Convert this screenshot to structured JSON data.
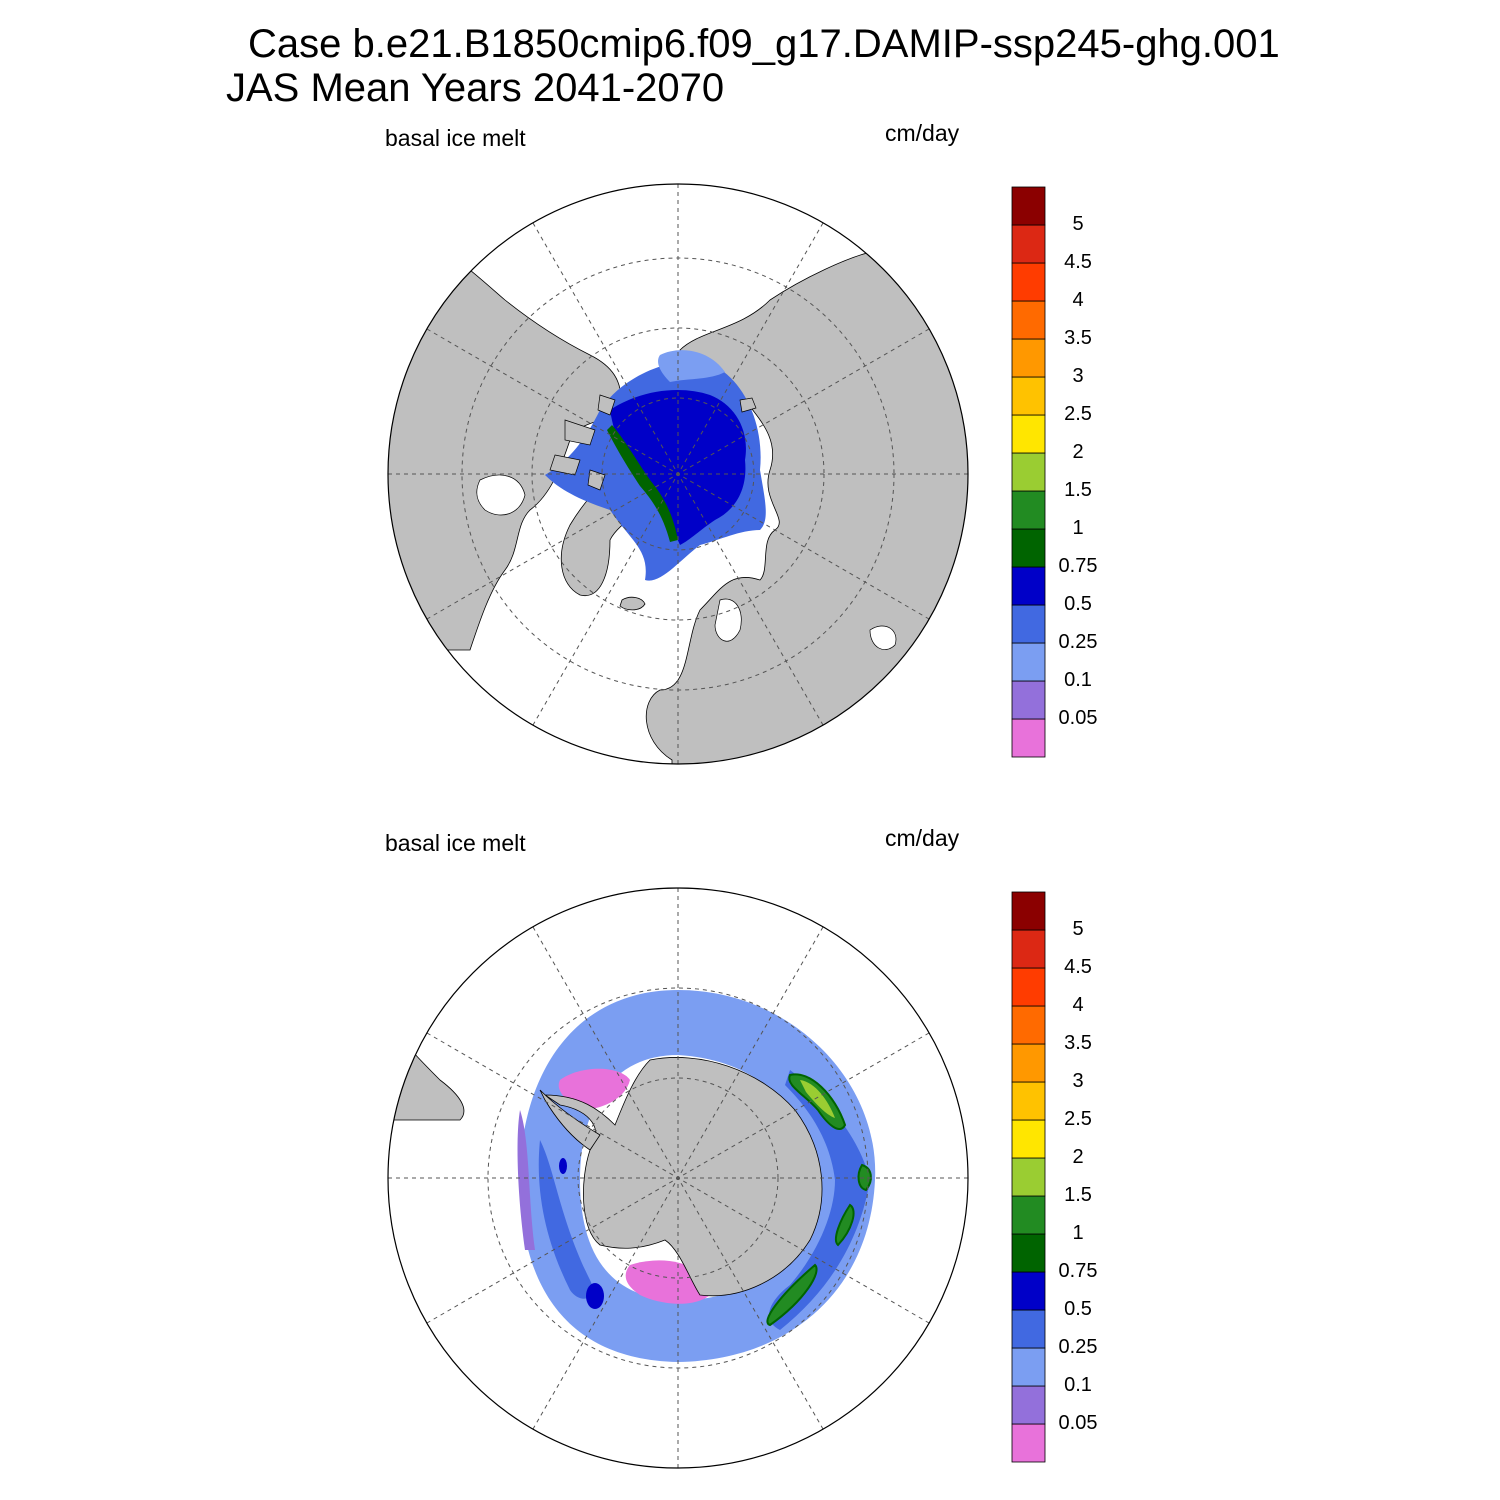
{
  "figure": {
    "title_line1": "Case b.e21.B1850cmip6.f09_g17.DAMIP-ssp245-ghg.001",
    "title_line2": "JAS Mean   Years 2041-2070"
  },
  "colors": {
    "land": "#bfbfbf",
    "ocean": "#ffffff",
    "grid": "#555555",
    "bins": [
      "#e872da",
      "#9370db",
      "#7b9ef2",
      "#4169e1",
      "#0000c8",
      "#006400",
      "#228b22",
      "#9acd32",
      "#ffe600",
      "#ffc200",
      "#ff9800",
      "#ff6a00",
      "#ff3c00",
      "#dc2814",
      "#8b0000"
    ]
  },
  "colorbar": {
    "levels": [
      "0.05",
      "0.1",
      "0.25",
      "0.5",
      "0.75",
      "1",
      "1.5",
      "2",
      "2.5",
      "3",
      "3.5",
      "4",
      "4.5",
      "5"
    ]
  },
  "panels": [
    {
      "id": "arctic",
      "variable_label": "basal ice melt",
      "units_label": "cm/day",
      "hemisphere": "north",
      "field_summary": {
        "dominant_range": "0.5-0.75",
        "edge_range": "0.25-0.5",
        "shelf_break_range": "0.75-1"
      }
    },
    {
      "id": "antarctic",
      "variable_label": "basal ice melt",
      "units_label": "cm/day",
      "hemisphere": "south",
      "field_summary": {
        "dominant_range": "0.1-0.25",
        "max_range": "1.5-2"
      }
    }
  ]
}
